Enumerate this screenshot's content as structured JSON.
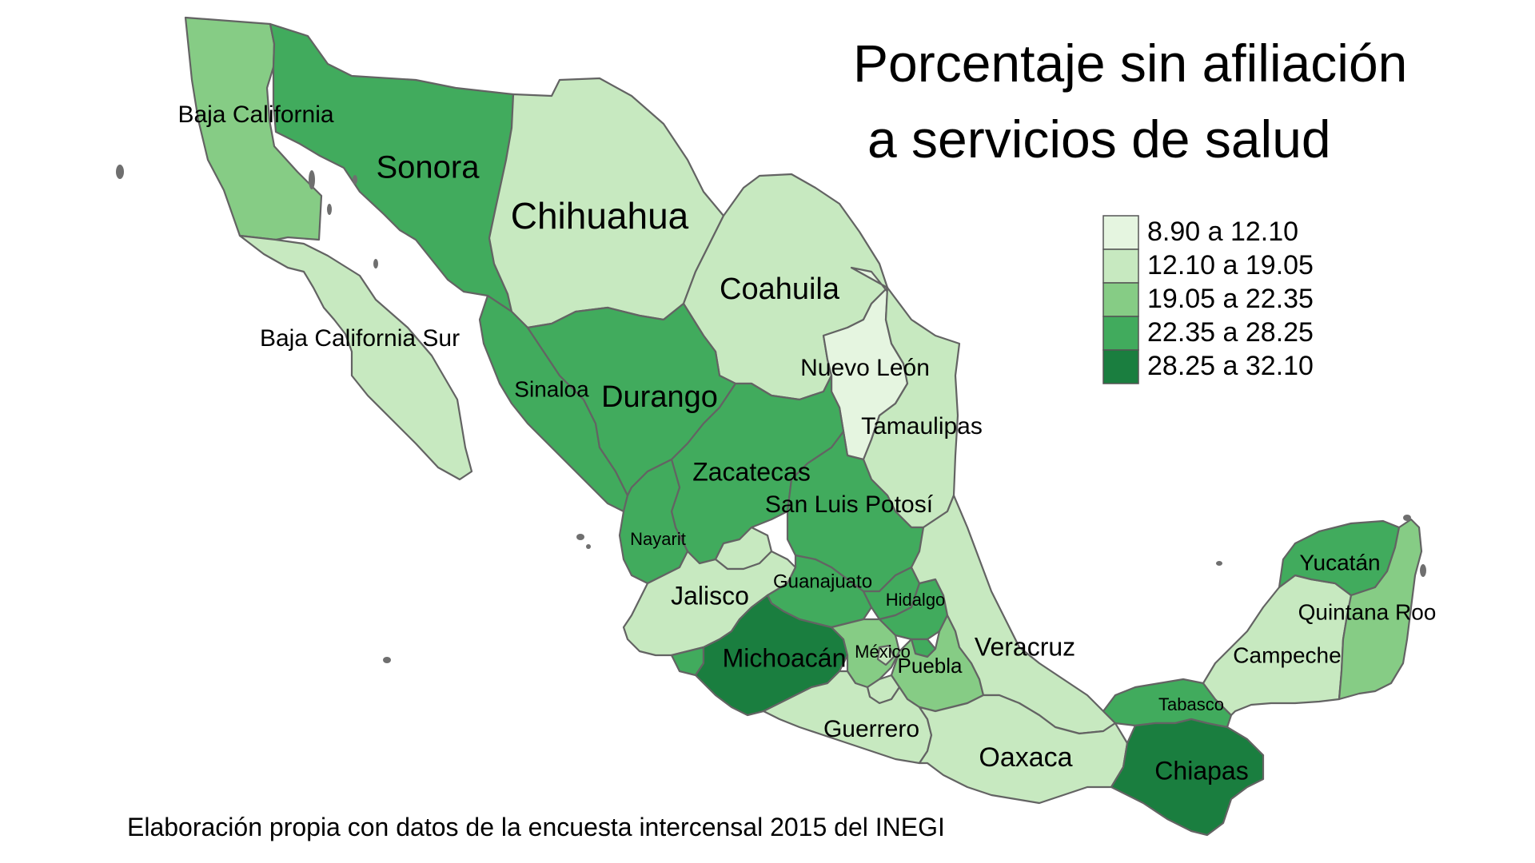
{
  "title": {
    "line1": "Porcentaje sin afiliación",
    "line2": "a servicios de salud"
  },
  "legend": {
    "items": [
      {
        "label": "8.90 a 12.10",
        "color": "#e5f5e0"
      },
      {
        "label": "12.10 a 19.05",
        "color": "#c7e9c0"
      },
      {
        "label": "19.05 a 22.35",
        "color": "#86cc85"
      },
      {
        "label": "22.35 a 28.25",
        "color": "#41ab5d"
      },
      {
        "label": "28.25 a 32.10",
        "color": "#1a7e3f"
      }
    ]
  },
  "states": [
    {
      "key": "baja-california",
      "name": "Baja California",
      "class": 2
    },
    {
      "key": "baja-california-sur",
      "name": "Baja California Sur",
      "class": 1
    },
    {
      "key": "sonora",
      "name": "Sonora",
      "class": 3
    },
    {
      "key": "chihuahua",
      "name": "Chihuahua",
      "class": 1
    },
    {
      "key": "coahuila",
      "name": "Coahuila",
      "class": 1
    },
    {
      "key": "nuevo-leon",
      "name": "Nuevo León",
      "class": 0
    },
    {
      "key": "tamaulipas",
      "name": "Tamaulipas",
      "class": 1
    },
    {
      "key": "sinaloa",
      "name": "Sinaloa",
      "class": 3
    },
    {
      "key": "durango",
      "name": "Durango",
      "class": 3
    },
    {
      "key": "zacatecas",
      "name": "Zacatecas",
      "class": 3
    },
    {
      "key": "san-luis-potosi",
      "name": "San Luis Potosí",
      "class": 3
    },
    {
      "key": "nayarit",
      "name": "Nayarit",
      "class": 3
    },
    {
      "key": "aguascalientes",
      "name": "",
      "class": 1
    },
    {
      "key": "jalisco",
      "name": "Jalisco",
      "class": 1
    },
    {
      "key": "guanajuato",
      "name": "Guanajuato",
      "class": 3
    },
    {
      "key": "queretaro",
      "name": "",
      "class": 3
    },
    {
      "key": "hidalgo",
      "name": "Hidalgo",
      "class": 3
    },
    {
      "key": "colima",
      "name": "",
      "class": 3
    },
    {
      "key": "michoacan",
      "name": "Michoacán",
      "class": 4
    },
    {
      "key": "mexico",
      "name": "México",
      "class": 2
    },
    {
      "key": "cdmx",
      "name": "",
      "class": 1
    },
    {
      "key": "morelos",
      "name": "",
      "class": 1
    },
    {
      "key": "tlaxcala",
      "name": "",
      "class": 3
    },
    {
      "key": "puebla",
      "name": "Puebla",
      "class": 2
    },
    {
      "key": "veracruz",
      "name": "Veracruz",
      "class": 1
    },
    {
      "key": "guerrero",
      "name": "Guerrero",
      "class": 1
    },
    {
      "key": "oaxaca",
      "name": "Oaxaca",
      "class": 1
    },
    {
      "key": "tabasco",
      "name": "Tabasco",
      "class": 3
    },
    {
      "key": "chiapas",
      "name": "Chiapas",
      "class": 4
    },
    {
      "key": "campeche",
      "name": "Campeche",
      "class": 1
    },
    {
      "key": "yucatan",
      "name": "Yucatán",
      "class": 3
    },
    {
      "key": "quintana-roo",
      "name": "Quintana Roo",
      "class": 2
    }
  ],
  "caption": "Elaboración propia con datos de la encuesta intercensal 2015 del INEGI"
}
